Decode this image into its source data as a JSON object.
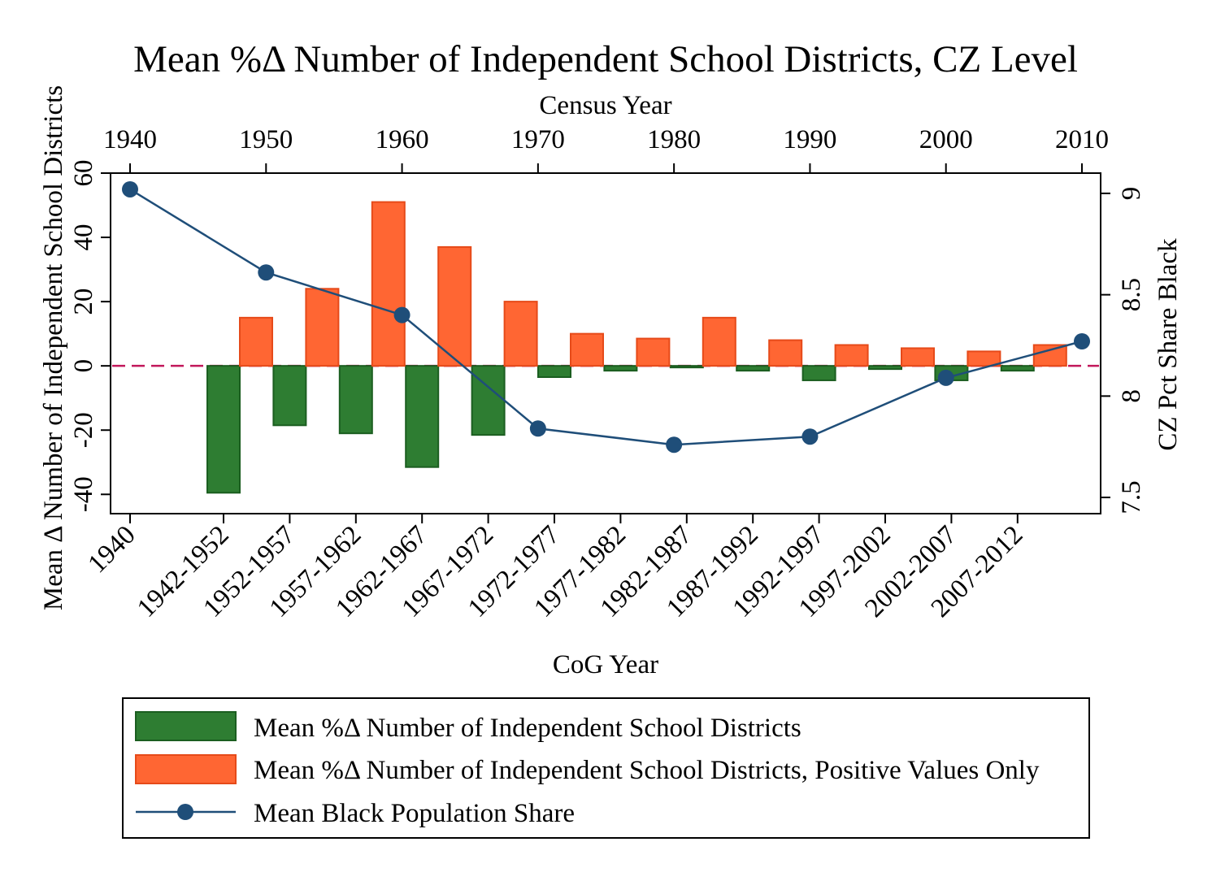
{
  "chart_data": {
    "type": "bar",
    "title": "Mean %Δ Number of Independent School Districts, CZ Level",
    "xlabel": "CoG Year",
    "ylabel": "Mean Δ Number of Independent School Districts",
    "x2label": "Census Year",
    "y2label": "CZ Pct Share Black",
    "categories": [
      "1940",
      "1942-1952",
      "1952-1957",
      "1957-1962",
      "1962-1967",
      "1967-1972",
      "1972-1977",
      "1977-1982",
      "1982-1987",
      "1987-1992",
      "1992-1997",
      "1997-2002",
      "2002-2007",
      "2007-2012"
    ],
    "ylim": [
      -46,
      60
    ],
    "yticks": [
      -40,
      -20,
      0,
      20,
      40,
      60
    ],
    "y2lim": [
      7.42,
      9.1
    ],
    "y2ticks": [
      7.5,
      8,
      8.5,
      9
    ],
    "x2lim": [
      1940,
      2010
    ],
    "x2ticks": [
      1940,
      1950,
      1960,
      1970,
      1980,
      1990,
      2000,
      2010
    ],
    "zero_line": true,
    "series": [
      {
        "name": "Mean %Δ Number of Independent School Districts",
        "color": "#2e7d32",
        "values": [
          null,
          -39.5,
          -18.5,
          -21,
          -31.5,
          -21.5,
          -3.5,
          -1.5,
          -0.5,
          -1.5,
          -4.5,
          -1,
          -4.5,
          -1.5
        ]
      },
      {
        "name": "Mean %Δ Number of Independent School Districts, Positive Values Only",
        "color": "#ff6633",
        "values": [
          null,
          15,
          24,
          51,
          37,
          20,
          10,
          8.5,
          15,
          8,
          6.5,
          5.5,
          4.5,
          6.5
        ]
      },
      {
        "name": "Mean Black Population Share",
        "color": "#1f4e79",
        "x": [
          1940,
          1950,
          1960,
          1970,
          1980,
          1990,
          2000,
          2010
        ],
        "values": [
          9.02,
          8.61,
          8.4,
          7.84,
          7.76,
          7.8,
          8.09,
          8.27
        ]
      }
    ],
    "legend_position": "bottom"
  }
}
